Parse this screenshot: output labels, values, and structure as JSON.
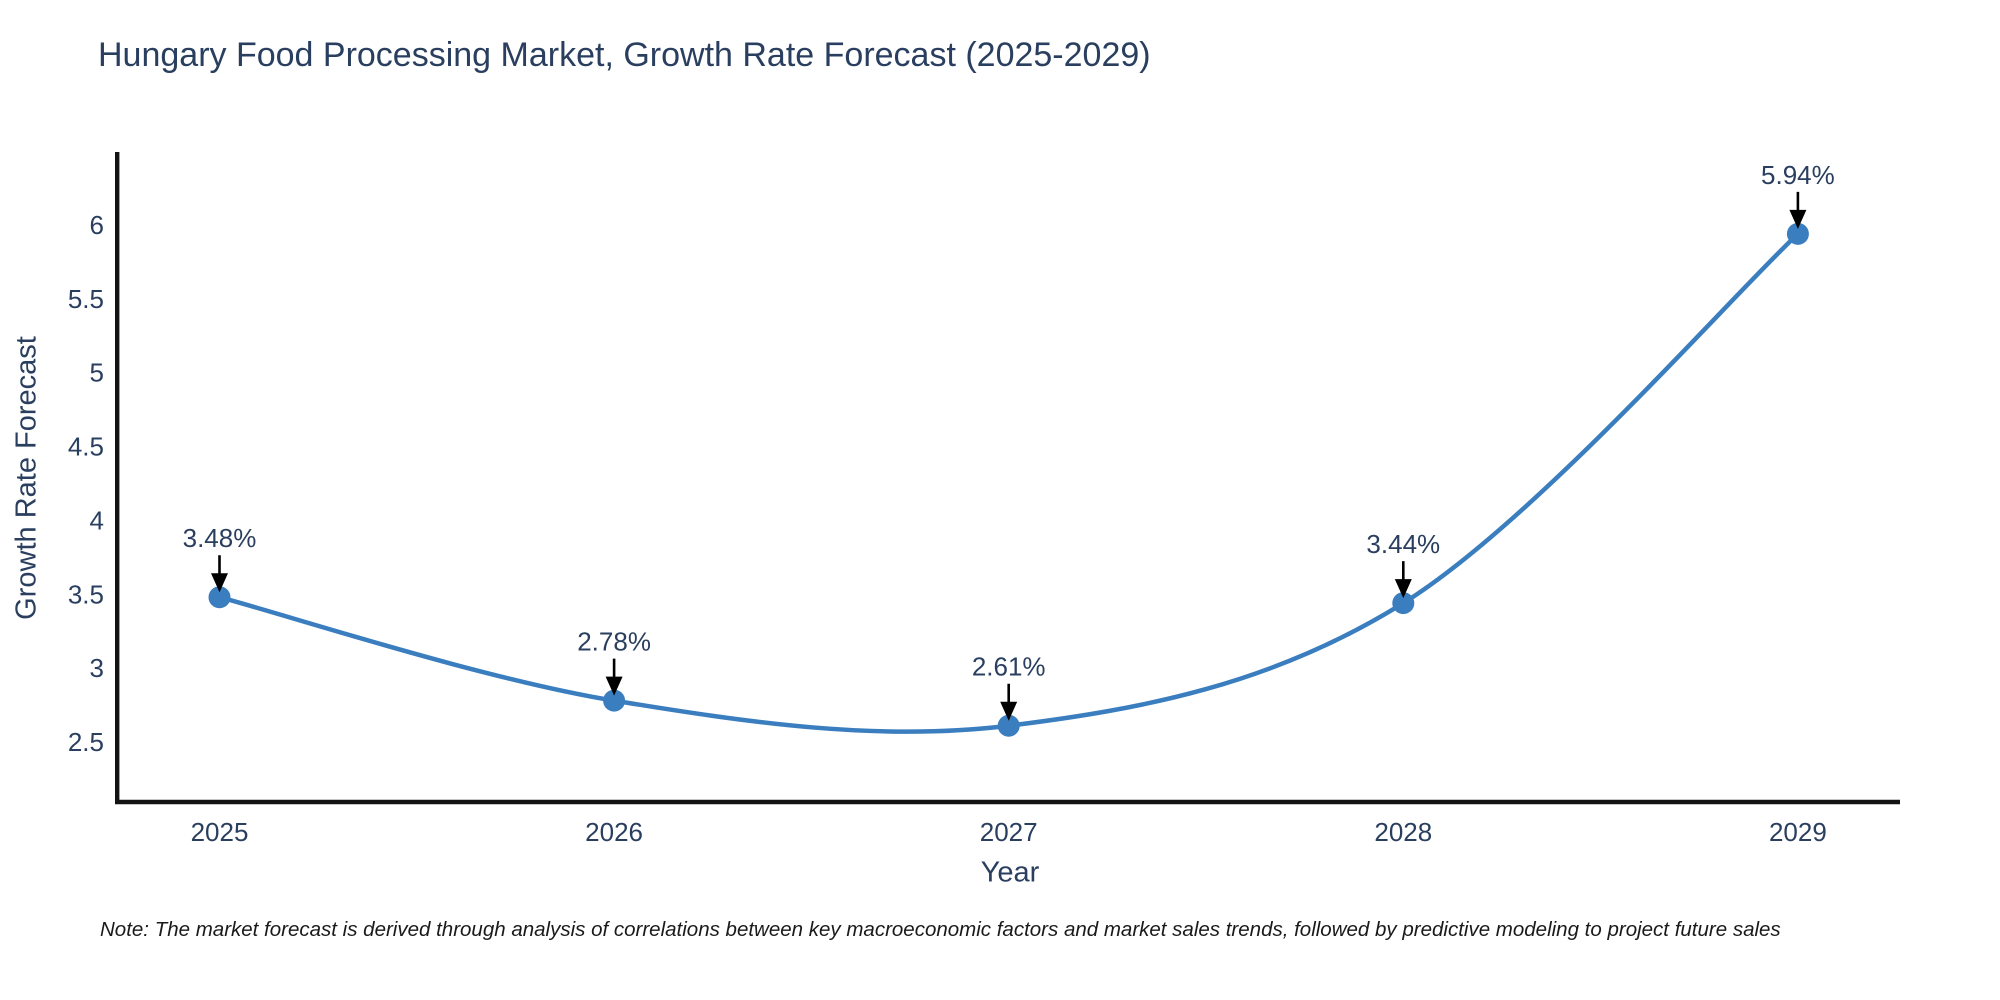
{
  "chart_data": {
    "type": "line",
    "line_shape": "spline",
    "title": "Hungary Food Processing Market, Growth Rate Forecast (2025-2029)",
    "xlabel": "Year",
    "ylabel": "Growth Rate Forecast",
    "categories": [
      "2025",
      "2026",
      "2027",
      "2028",
      "2029"
    ],
    "series": [
      {
        "name": "Growth Rate Forecast",
        "values": [
          3.48,
          2.78,
          2.61,
          3.44,
          5.94
        ],
        "point_labels": [
          "3.48%",
          "2.78%",
          "2.61%",
          "3.44%",
          "5.94%"
        ]
      }
    ],
    "yticks": [
      2.5,
      3,
      3.5,
      4,
      4.5,
      5,
      5.5,
      6
    ],
    "ylim": [
      2.1,
      6.48
    ],
    "grid": false,
    "legend": false,
    "colors": {
      "line": "#3a7ebf",
      "marker": "#3a7ebf",
      "annotation_text": "#2a3f5f",
      "annotation_arrow": "#000000",
      "axis_line": "#131313",
      "tick_text": "#2a3f5f"
    }
  },
  "note": "Note: The market forecast is derived through analysis of correlations between key macroeconomic factors and market sales trends, followed by predictive modeling to project future sales"
}
